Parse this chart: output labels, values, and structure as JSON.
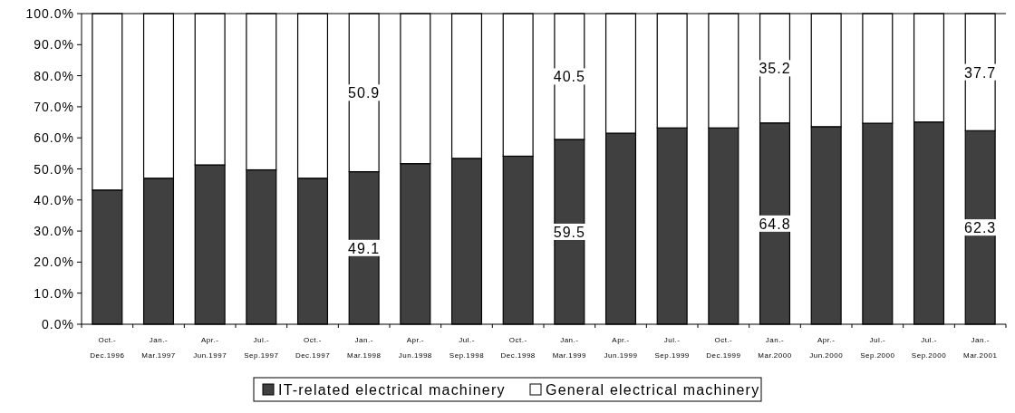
{
  "chart_data": {
    "type": "bar",
    "stacked": true,
    "categories": [
      "Oct.-\nDec.1996",
      "Jan.-\nMar.1997",
      "Apr.-\nJun.1997",
      "Jul.-\nSep.1997",
      "Oct.-\nDec.1997",
      "Jan.-\nMar.1998",
      "Apr.-\nJun.1998",
      "Jul.-\nSep.1998",
      "Oct.-\nDec.1998",
      "Jan.-\nMar.1999",
      "Apr.-\nJun.1999",
      "Jul.-\nSep.1999",
      "Oct.-\nDec.1999",
      "Jan.-\nMar.2000",
      "Apr.-\nJun.2000",
      "Jul.-\nSep.2000",
      "Jul.-\nSep.2000",
      "Jan.-\nMar.2001"
    ],
    "series": [
      {
        "name": "IT-related electrical machinery",
        "color": "#404040",
        "values": [
          43.2,
          47.0,
          51.3,
          49.7,
          47.0,
          49.1,
          51.7,
          53.4,
          54.1,
          59.5,
          61.5,
          63.2,
          63.2,
          64.8,
          63.6,
          64.7,
          65.1,
          62.3
        ],
        "value_labels": [
          null,
          null,
          null,
          null,
          null,
          "49.1",
          null,
          null,
          null,
          "59.5",
          null,
          null,
          null,
          "64.8",
          null,
          null,
          null,
          "62.3"
        ]
      },
      {
        "name": "General electrical machinery",
        "color": "#ffffff",
        "values": [
          56.8,
          53.0,
          48.7,
          50.3,
          53.0,
          50.9,
          48.3,
          46.6,
          45.9,
          40.5,
          38.5,
          36.8,
          36.8,
          35.2,
          36.4,
          35.3,
          34.9,
          37.7
        ],
        "value_labels": [
          null,
          null,
          null,
          null,
          null,
          "50.9",
          null,
          null,
          null,
          "40.5",
          null,
          null,
          null,
          "35.2",
          null,
          null,
          null,
          "37.7"
        ]
      }
    ],
    "ylim": [
      0,
      100
    ],
    "yticks": [
      {
        "value": 0,
        "label": "0.0%"
      },
      {
        "value": 10,
        "label": "10.0%"
      },
      {
        "value": 20,
        "label": "20.0%"
      },
      {
        "value": 30,
        "label": "30.0%"
      },
      {
        "value": 40,
        "label": "40.0%"
      },
      {
        "value": 50,
        "label": "50.0%"
      },
      {
        "value": 60,
        "label": "60.0%"
      },
      {
        "value": 70,
        "label": "70.0%"
      },
      {
        "value": 80,
        "label": "80.0%"
      },
      {
        "value": 90,
        "label": "90.0%"
      },
      {
        "value": 100,
        "label": "100.0%"
      }
    ],
    "legend": "bottom"
  }
}
